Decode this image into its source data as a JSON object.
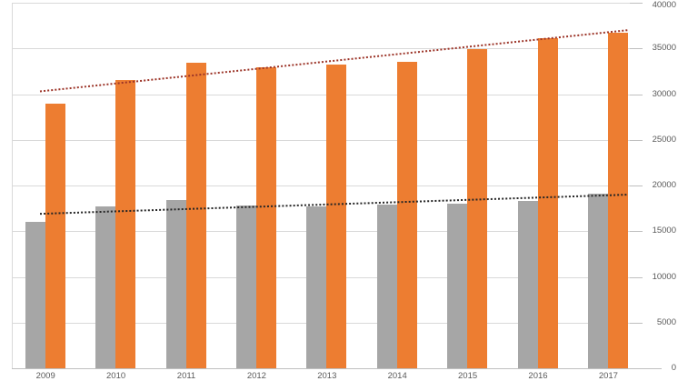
{
  "chart_data": {
    "type": "bar",
    "title": "",
    "categories": [
      "2009",
      "2010",
      "2011",
      "2012",
      "2013",
      "2014",
      "2015",
      "2016",
      "2017"
    ],
    "series": [
      {
        "name": "gray-series",
        "color": "#A6A6A6",
        "values": [
          16000,
          17700,
          18400,
          17800,
          17700,
          17900,
          18000,
          18300,
          19100
        ]
      },
      {
        "name": "orange-series",
        "color": "#ED7D31",
        "values": [
          29000,
          31500,
          33400,
          32900,
          33200,
          33500,
          34900,
          36100,
          36700
        ]
      }
    ],
    "trendlines": [
      {
        "series": "gray-series",
        "style": "dotted",
        "color": "#262626",
        "start_value": 16900,
        "end_value": 19000
      },
      {
        "series": "orange-series",
        "style": "dotted",
        "color": "#9C3428",
        "start_value": 30300,
        "end_value": 37000
      }
    ],
    "y_axis": {
      "side": "right",
      "min": 0,
      "max": 40000,
      "step": 5000,
      "tick_labels": [
        "0",
        "5000",
        "10000",
        "15000",
        "20000",
        "25000",
        "30000",
        "35000",
        "40000"
      ]
    },
    "x_axis": {
      "tick_labels": [
        "2009",
        "2010",
        "2011",
        "2012",
        "2013",
        "2014",
        "2015",
        "2016",
        "2017"
      ]
    },
    "legend": "none",
    "grid": true,
    "colors": {
      "background": "#FFFFFF",
      "gridline": "#D9D9D9",
      "axis_line": "#BFBFBF",
      "label_text": "#595959"
    }
  }
}
